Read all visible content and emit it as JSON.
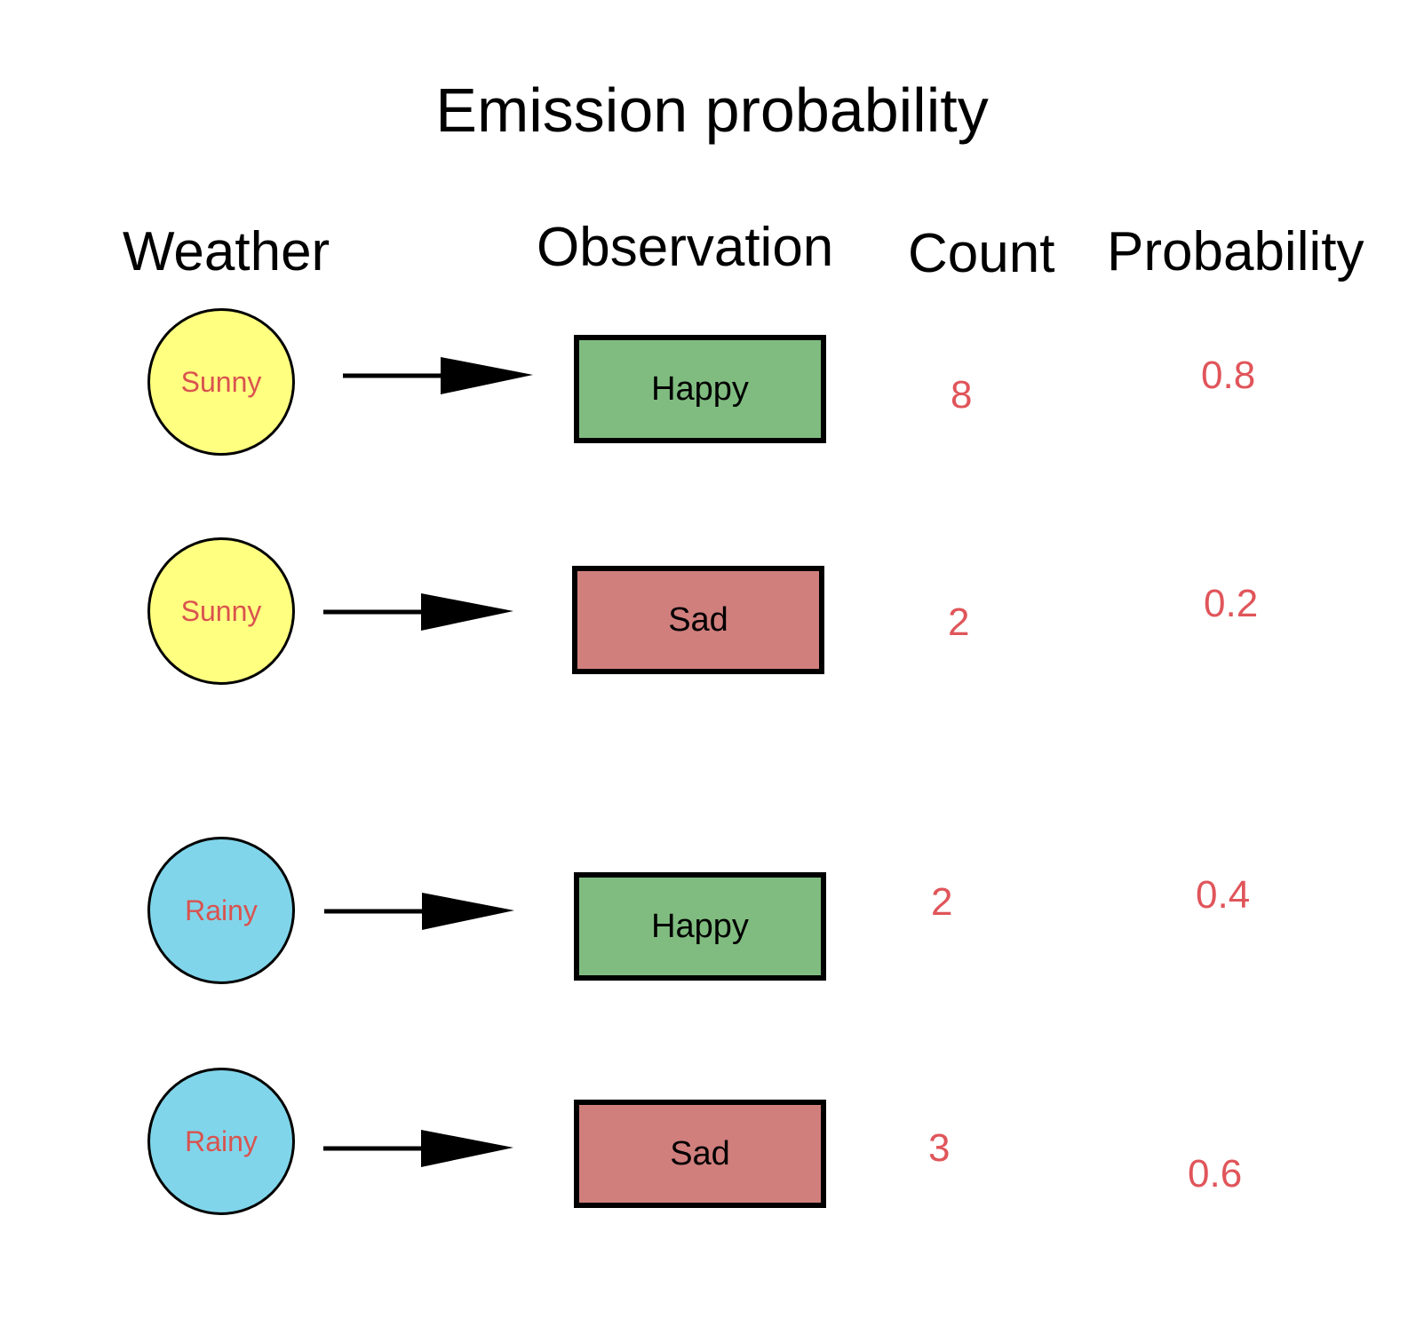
{
  "title": "Emission probability",
  "headers": {
    "weather": "Weather",
    "observation": "Observation",
    "count": "Count",
    "probability": "Probability"
  },
  "colors": {
    "sunny": "#ffff80",
    "rainy": "#80d5ea",
    "happy": "#80bc80",
    "sad": "#d07f7d",
    "value_text": "#e0555a",
    "weather_text": "#d9534f"
  },
  "rows": [
    {
      "weather": "Sunny",
      "observation": "Happy",
      "count": "8",
      "probability": "0.8"
    },
    {
      "weather": "Sunny",
      "observation": "Sad",
      "count": "2",
      "probability": "0.2"
    },
    {
      "weather": "Rainy",
      "observation": "Happy",
      "count": "2",
      "probability": "0.4"
    },
    {
      "weather": "Rainy",
      "observation": "Sad",
      "count": "3",
      "probability": "0.6"
    }
  ]
}
